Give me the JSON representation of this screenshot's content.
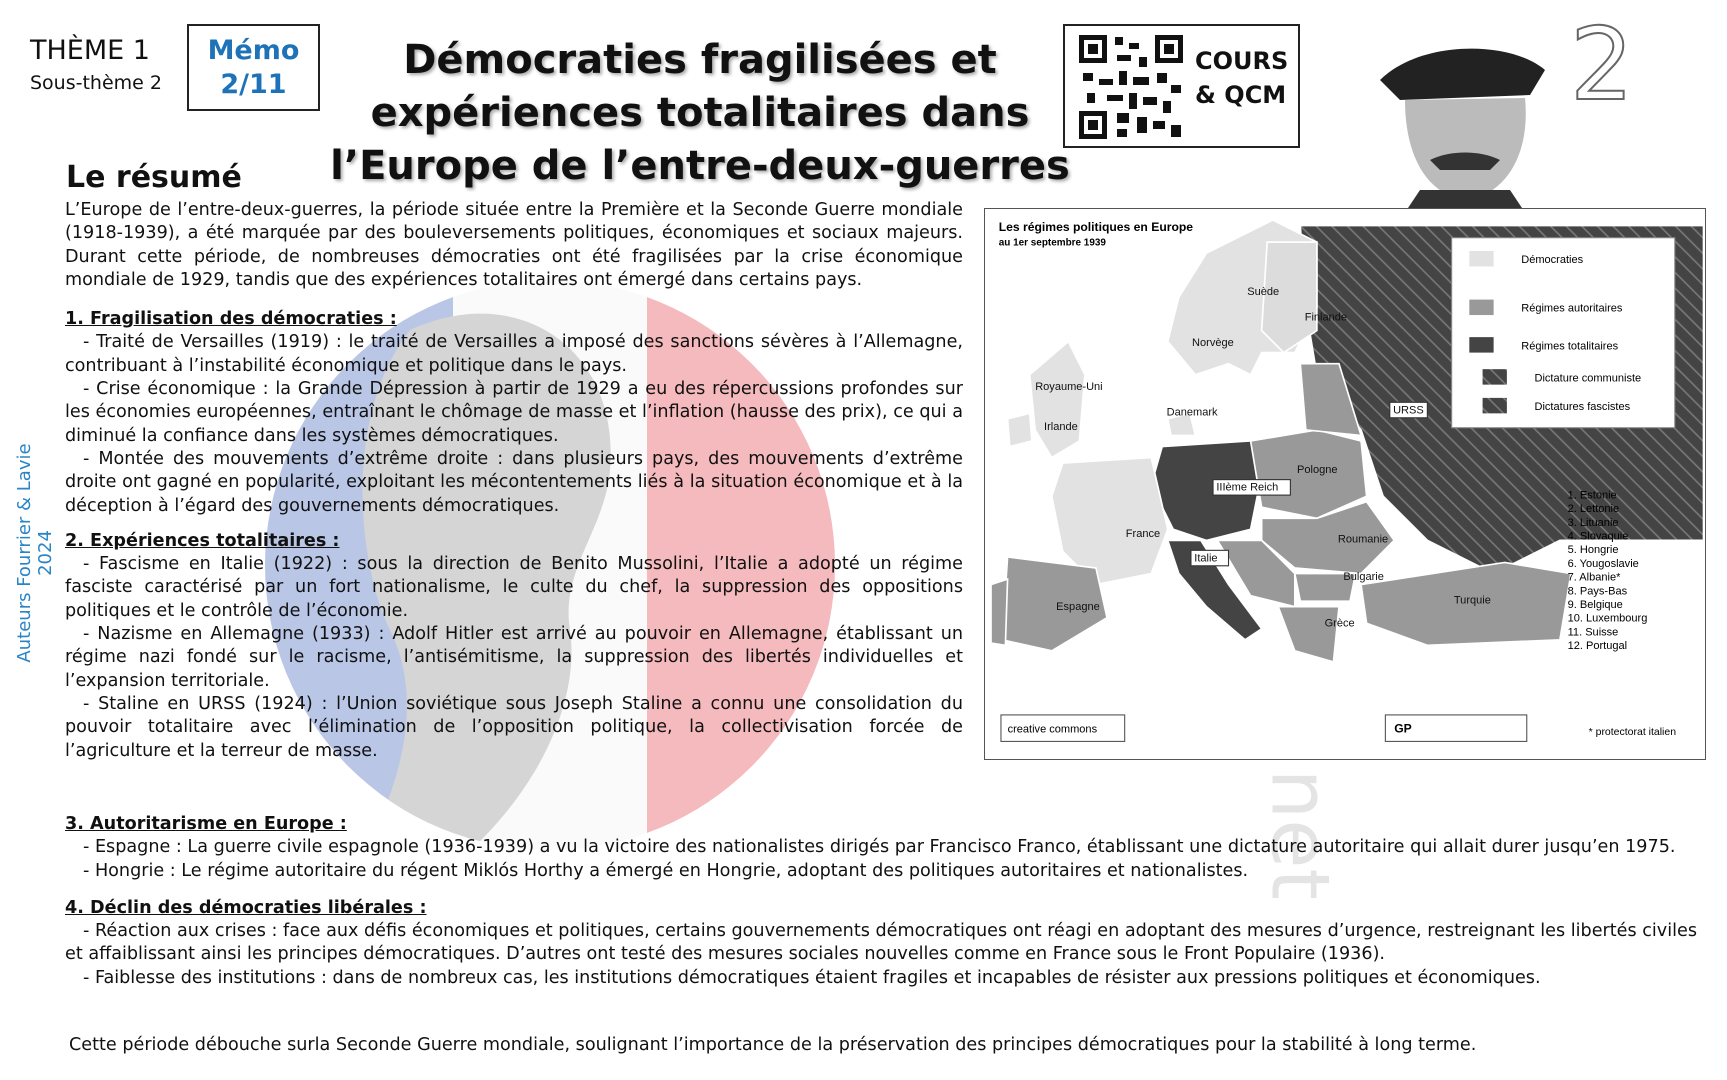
{
  "header": {
    "theme": "THÈME 1",
    "sous_theme": "Sous-thème 2",
    "memo": [
      "Mémo",
      "2/11"
    ],
    "title": [
      "Démocraties fragilisées et",
      "expériences totalitaires dans",
      "l’Europe de l’entre-deux-guerres"
    ],
    "qr_label": [
      "COURS",
      "& QCM"
    ],
    "number": "2"
  },
  "credit": "Auteurs Fourrier & Lavie 2024",
  "watermark": "Histographie.net",
  "summary": {
    "heading": "Le résumé",
    "intro": "L’Europe de l’entre-deux-guerres, la période située entre la Première et la Seconde Guerre mondiale (1918-1939), a été marquée par des bouleversements politiques, économiques et sociaux majeurs. Durant cette période, de nombreuses démocraties ont été fragilisées par la crise économique mondiale de 1929, tandis que des expériences totalitaires ont émergé dans certains pays.",
    "sections": [
      {
        "title": "1. Fragilisation des démocraties :",
        "items": [
          "- Traité de Versailles (1919) : le traité de Versailles a imposé des sanctions sévères à l’Allemagne, contribuant à l’instabilité économique et politique dans le pays.",
          "- Crise économique : la Grande Dépression à partir de 1929 a eu des répercussions profondes sur les économies européennes, entraînant le chômage de masse et l’inflation (hausse des prix), ce qui a diminué la confiance dans les systèmes démocratiques.",
          "- Montée des mouvements d’extrême droite : dans plusieurs pays, des mouvements d’extrême droite ont gagné en popularité, exploitant les mécontentements liés à la situation économique et à la déception à l’égard des gouvernements démocratiques."
        ]
      },
      {
        "title": "2. Expériences totalitaires :",
        "items": [
          "- Fascisme en Italie (1922) : sous la direction de Benito Mussolini, l’Italie a adopté un régime fasciste caractérisé par un fort nationalisme, le culte du chef, la suppression des oppositions politiques et le contrôle de l’économie.",
          "- Nazisme en Allemagne (1933) : Adolf Hitler est arrivé au pouvoir en Allemagne, établissant un régime nazi fondé sur le racisme, l’antisémitisme, la suppression des libertés individuelles et l’expansion territoriale.",
          "- Staline en URSS (1924) : l’Union soviétique sous Joseph Staline a connu une consolidation du pouvoir totalitaire avec l’élimination de l’opposition politique, la collectivisation forcée de l’agriculture et la terreur de masse."
        ]
      },
      {
        "title": "3. Autoritarisme en Europe :",
        "items": [
          "- Espagne : La guerre civile espagnole (1936-1939) a vu la victoire des nationalistes dirigés par Francisco Franco, établissant une dictature autoritaire qui allait durer jusqu’en 1975.",
          "- Hongrie : Le régime autoritaire du régent Miklós Horthy a émergé en Hongrie, adoptant des politiques autoritaires et nationalistes."
        ]
      },
      {
        "title": "4. Déclin des démocraties libérales :",
        "items": [
          "- Réaction aux crises : face aux défis économiques et politiques, certains gouvernements démocratiques ont réagi en adoptant des mesures d’urgence, restreignant les libertés civiles et affaiblissant ainsi les principes démocratiques. D’autres ont testé des mesures sociales nouvelles comme en France sous le Front Populaire (1936).",
          "- Faiblesse des institutions : dans de nombreux cas, les institutions démocratiques étaient fragiles et incapables de résister aux pressions politiques et économiques."
        ]
      }
    ],
    "conclusion": "Cette période débouche surla Seconde Guerre mondiale, soulignant l’importance de la préservation des principes démocratiques pour la stabilité à long terme."
  },
  "map": {
    "title": "Les régimes politiques en Europe",
    "subtitle": "au 1er septembre 1939",
    "legend": [
      "Démocraties",
      "Régimes autoritaires",
      "Régimes totalitaires",
      "Dictature communiste",
      "Dictatures fascistes"
    ],
    "countries": [
      "Suède",
      "Finlande",
      "Norvège",
      "Royaume-Uni",
      "Irlande",
      "Danemark",
      "IIIème Reich",
      "Pologne",
      "URSS",
      "France",
      "Roumanie",
      "Italie",
      "Bulgarie",
      "Espagne",
      "Turquie",
      "Grèce"
    ],
    "list": [
      "1. Estonie",
      "2. Lettonie",
      "3. Lituanie",
      "4. Slovaquie",
      "5. Hongrie",
      "6. Yougoslavie",
      "7. Albanie*",
      "8. Pays-Bas",
      "9. Belgique",
      "10. Luxembourg",
      "11. Suisse",
      "12. Portugal"
    ],
    "note": "* protectorat italien",
    "license": "creative commons",
    "author": "GP"
  }
}
